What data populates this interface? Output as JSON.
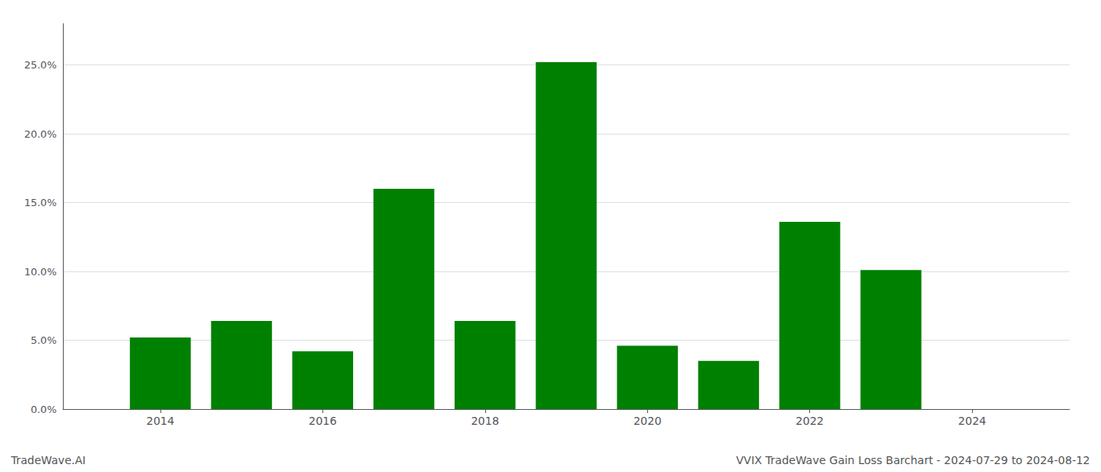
{
  "chart_data": {
    "type": "bar",
    "x": [
      2014,
      2015,
      2016,
      2017,
      2018,
      2019,
      2020,
      2021,
      2022,
      2023
    ],
    "values": [
      0.052,
      0.064,
      0.042,
      0.16,
      0.064,
      0.252,
      0.046,
      0.035,
      0.136,
      0.101
    ],
    "color": "#008000",
    "xlim": [
      2012.8,
      2025.2
    ],
    "xticks": [
      2014,
      2016,
      2018,
      2020,
      2022,
      2024
    ],
    "ylim": [
      0,
      0.28
    ],
    "yticks": [
      {
        "value": 0.0,
        "label": "0.0%"
      },
      {
        "value": 0.05,
        "label": "5.0%"
      },
      {
        "value": 0.1,
        "label": "10.0%"
      },
      {
        "value": 0.15,
        "label": "15.0%"
      },
      {
        "value": 0.2,
        "label": "20.0%"
      },
      {
        "value": 0.25,
        "label": "25.0%"
      }
    ],
    "grid": true,
    "annotations": [
      "TradeWave.AI",
      "VVIX TradeWave Gain Loss Barchart - 2024-07-29 to 2024-08-12"
    ]
  }
}
